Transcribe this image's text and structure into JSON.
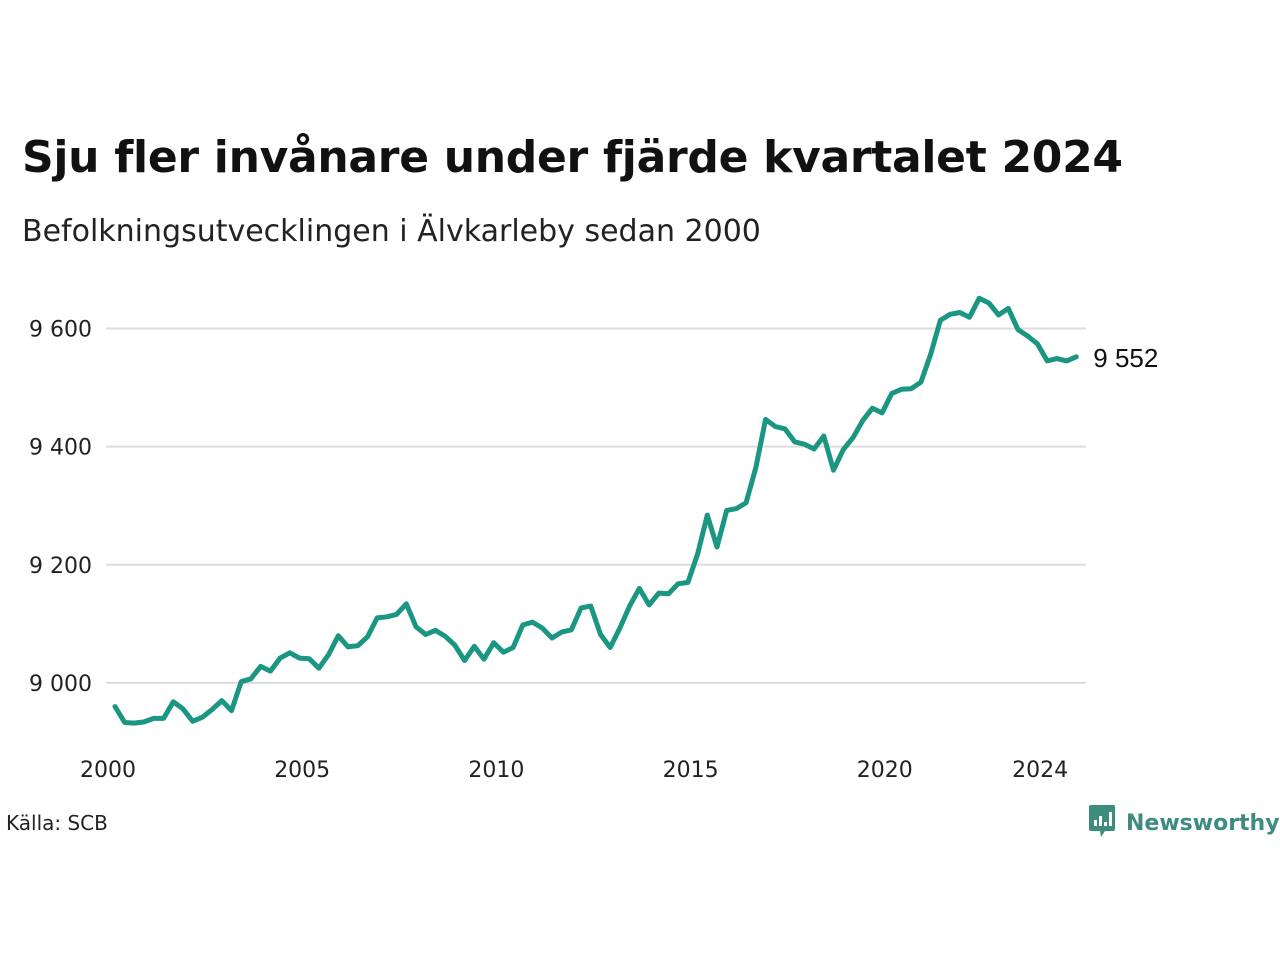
{
  "header": {
    "title": "Sju fler invånare under fjärde kvartalet 2024",
    "subtitle": "Befolkningsutvecklingen i Älvkarleby sedan 2000"
  },
  "footer": {
    "source": "Källa: SCB",
    "brand": "Newsworthy",
    "brand_icon": "bar-chart-speech-bubble-icon"
  },
  "colors": {
    "line": "#1a9683",
    "grid": "#dddddd",
    "brand": "#3d8c7d"
  },
  "chart_data": {
    "type": "line",
    "title": "Sju fler invånare under fjärde kvartalet 2024",
    "subtitle": "Befolkningsutvecklingen i Älvkarleby sedan 2000",
    "xlabel": "",
    "ylabel": "",
    "ylim": [
      8900,
      9660
    ],
    "xlim": [
      2000,
      2025
    ],
    "grid": true,
    "y_ticks": [
      9000,
      9200,
      9400,
      9600
    ],
    "y_tick_labels": [
      "9 000",
      "9 200",
      "9 400",
      "9 600"
    ],
    "x_ticks": [
      2000,
      2005,
      2010,
      2015,
      2020,
      2024
    ],
    "x_tick_labels": [
      "2000",
      "2005",
      "2010",
      "2015",
      "2020",
      "2024"
    ],
    "last_value_label": "9 552",
    "series": [
      {
        "x": [
          "2000 Q1",
          "2000 Q2",
          "2000 Q3",
          "2000 Q4",
          "2001 Q1",
          "2001 Q2",
          "2001 Q3",
          "2001 Q4",
          "2002 Q1",
          "2002 Q2",
          "2002 Q3",
          "2002 Q4",
          "2003 Q1",
          "2003 Q2",
          "2003 Q3",
          "2003 Q4",
          "2004 Q1",
          "2004 Q2",
          "2004 Q3",
          "2004 Q4",
          "2005 Q1",
          "2005 Q2",
          "2005 Q3",
          "2005 Q4",
          "2006 Q1",
          "2006 Q2",
          "2006 Q3",
          "2006 Q4",
          "2007 Q1",
          "2007 Q2",
          "2007 Q3",
          "2007 Q4",
          "2008 Q1",
          "2008 Q2",
          "2008 Q3",
          "2008 Q4",
          "2009 Q1",
          "2009 Q2",
          "2009 Q3",
          "2009 Q4",
          "2010 Q1",
          "2010 Q2",
          "2010 Q3",
          "2010 Q4",
          "2011 Q1",
          "2011 Q2",
          "2011 Q3",
          "2011 Q4",
          "2012 Q1",
          "2012 Q2",
          "2012 Q3",
          "2012 Q4",
          "2013 Q1",
          "2013 Q2",
          "2013 Q3",
          "2013 Q4",
          "2014 Q1",
          "2014 Q2",
          "2014 Q3",
          "2014 Q4",
          "2015 Q1",
          "2015 Q2",
          "2015 Q3",
          "2015 Q4",
          "2016 Q1",
          "2016 Q2",
          "2016 Q3",
          "2016 Q4",
          "2017 Q1",
          "2017 Q2",
          "2017 Q3",
          "2017 Q4",
          "2018 Q1",
          "2018 Q2",
          "2018 Q3",
          "2018 Q4",
          "2019 Q1",
          "2019 Q2",
          "2019 Q3",
          "2019 Q4",
          "2020 Q1",
          "2020 Q2",
          "2020 Q3",
          "2020 Q4",
          "2021 Q1",
          "2021 Q2",
          "2021 Q3",
          "2021 Q4",
          "2022 Q1",
          "2022 Q2",
          "2022 Q3",
          "2022 Q4",
          "2023 Q1",
          "2023 Q2",
          "2023 Q3",
          "2023 Q4",
          "2024 Q1",
          "2024 Q2",
          "2024 Q3",
          "2024 Q4"
        ],
        "values": [
          8960,
          8933,
          8932,
          8934,
          8940,
          8940,
          8968,
          8956,
          8935,
          8942,
          8955,
          8970,
          8953,
          9002,
          9007,
          9028,
          9020,
          9042,
          9051,
          9042,
          9041,
          9025,
          9048,
          9080,
          9061,
          9063,
          9078,
          9110,
          9112,
          9116,
          9134,
          9095,
          9082,
          9089,
          9079,
          9064,
          9038,
          9062,
          9040,
          9068,
          9052,
          9060,
          9098,
          9103,
          9093,
          9076,
          9086,
          9090,
          9127,
          9130,
          9082,
          9060,
          9093,
          9130,
          9160,
          9132,
          9152,
          9151,
          9168,
          9170,
          9218,
          9284,
          9230,
          9292,
          9295,
          9305,
          9365,
          9446,
          9434,
          9430,
          9408,
          9404,
          9396,
          9418,
          9360,
          9395,
          9415,
          9444,
          9465,
          9457,
          9490,
          9497,
          9498,
          9509,
          9556,
          9614,
          9624,
          9627,
          9619,
          9651,
          9643,
          9623,
          9634,
          9598,
          9587,
          9574,
          9545,
          9549,
          9545,
          9552
        ]
      }
    ]
  }
}
